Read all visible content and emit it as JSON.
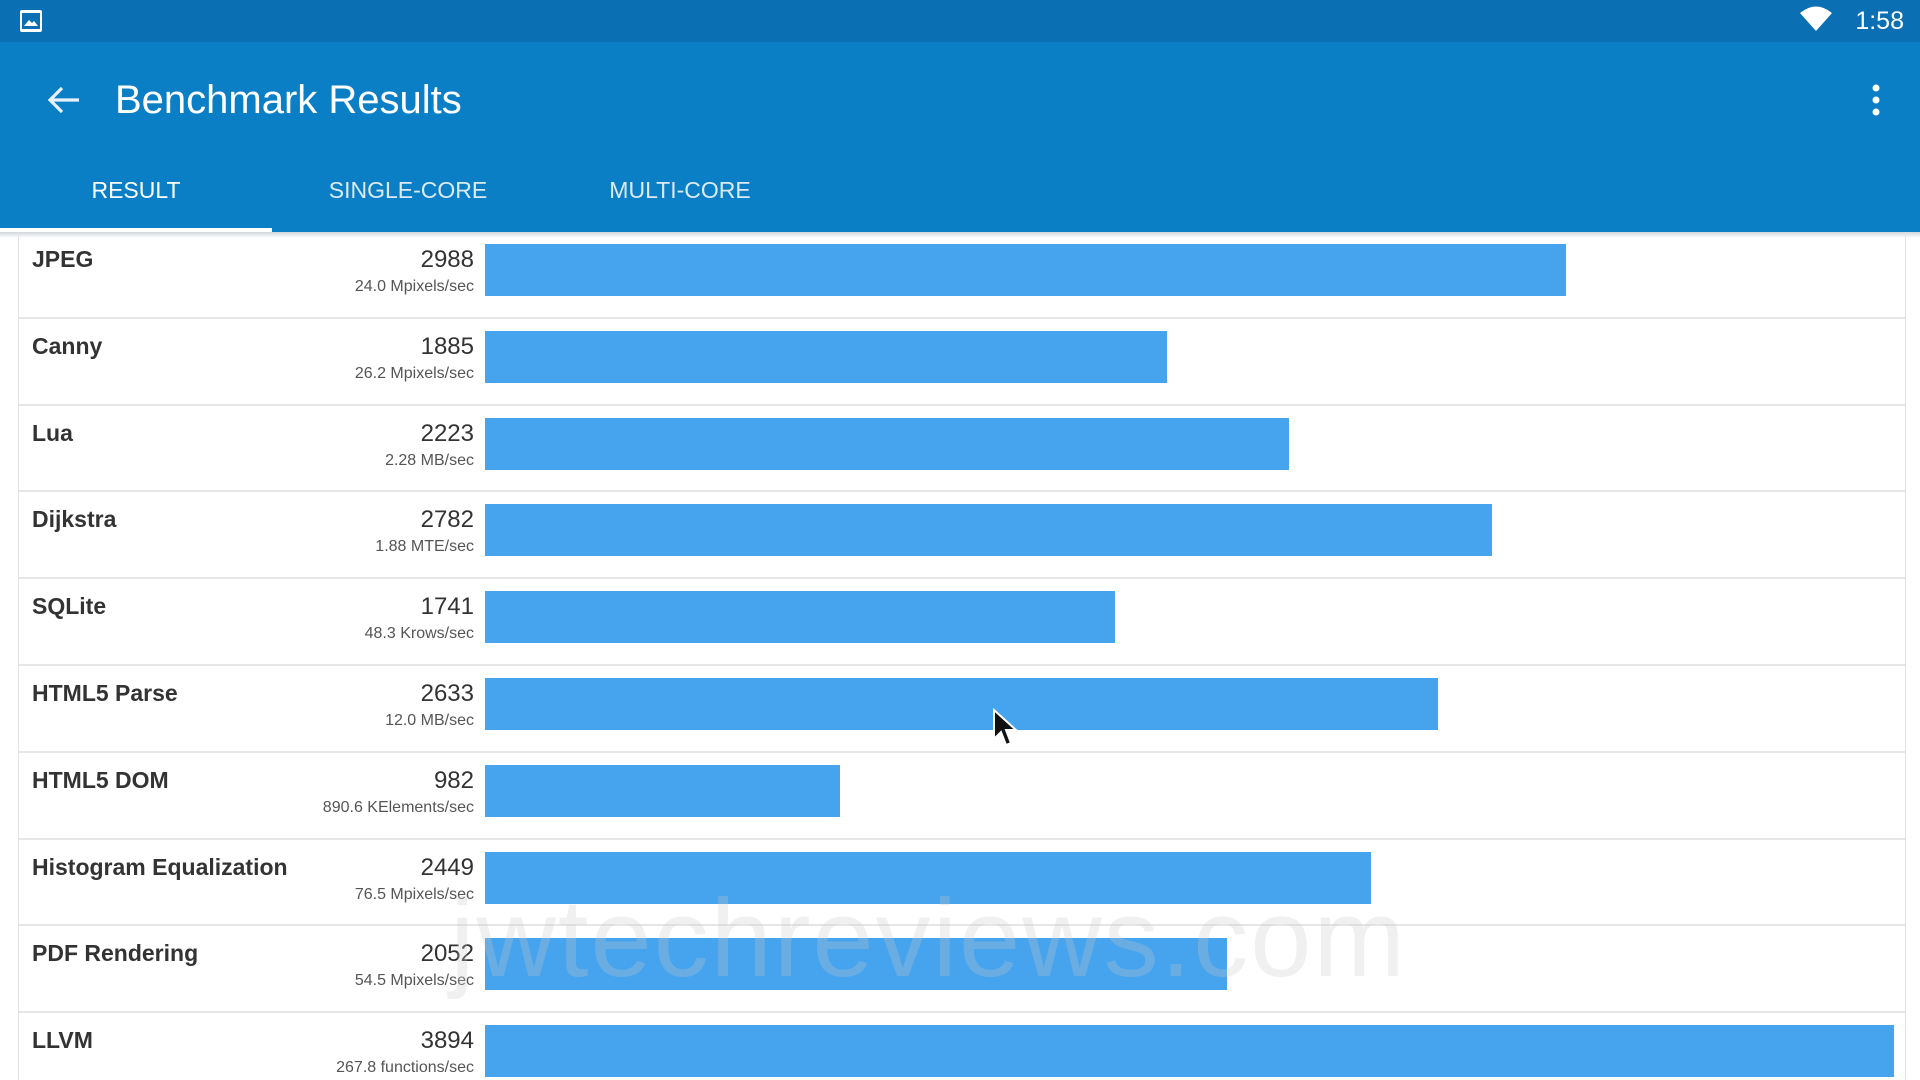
{
  "status_bar": {
    "time": "1:58",
    "left_icon": "image-icon",
    "wifi_icon": "wifi-icon"
  },
  "header": {
    "title": "Benchmark Results",
    "back_icon": "arrow-back-icon",
    "menu_icon": "more-vertical-icon"
  },
  "tabs": [
    {
      "label": "RESULT",
      "active": true
    },
    {
      "label": "SINGLE-CORE",
      "active": false
    },
    {
      "label": "MULTI-CORE",
      "active": false
    }
  ],
  "colors": {
    "status_bar": "#0a6fb3",
    "app_bar": "#0b7fc6",
    "bar": "#46a3ee"
  },
  "scale_max": 3894,
  "results": [
    {
      "name": "JPEG",
      "score": 2988,
      "rate": "24.0 Mpixels/sec"
    },
    {
      "name": "Canny",
      "score": 1885,
      "rate": "26.2 Mpixels/sec"
    },
    {
      "name": "Lua",
      "score": 2223,
      "rate": "2.28 MB/sec"
    },
    {
      "name": "Dijkstra",
      "score": 2782,
      "rate": "1.88 MTE/sec"
    },
    {
      "name": "SQLite",
      "score": 1741,
      "rate": "48.3 Krows/sec"
    },
    {
      "name": "HTML5 Parse",
      "score": 2633,
      "rate": "12.0 MB/sec"
    },
    {
      "name": "HTML5 DOM",
      "score": 982,
      "rate": "890.6 KElements/sec"
    },
    {
      "name": "Histogram Equalization",
      "score": 2449,
      "rate": "76.5 Mpixels/sec"
    },
    {
      "name": "PDF Rendering",
      "score": 2052,
      "rate": "54.5 Mpixels/sec"
    },
    {
      "name": "LLVM",
      "score": 3894,
      "rate": "267.8 functions/sec"
    }
  ],
  "watermark": "jwtechreviews.com"
}
